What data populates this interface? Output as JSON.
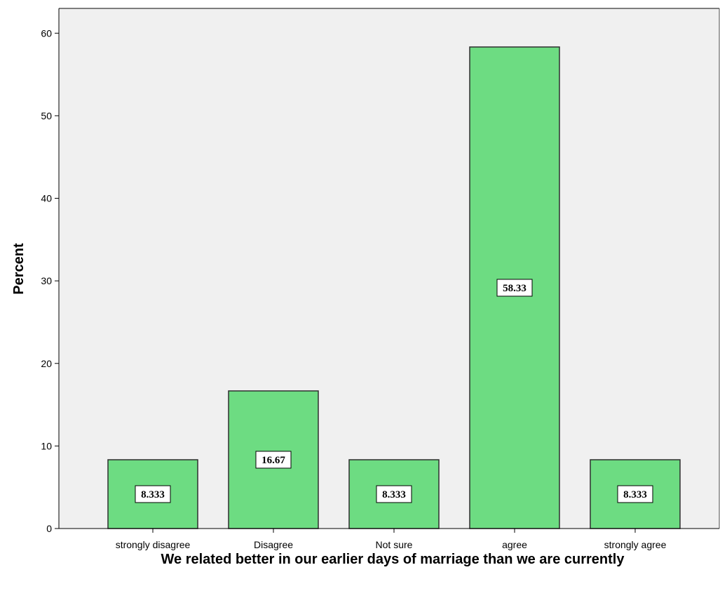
{
  "chart_data": {
    "type": "bar",
    "categories": [
      "strongly disagree",
      "Disagree",
      "Not sure",
      "agree",
      "strongly agree"
    ],
    "values": [
      8.333,
      16.67,
      8.333,
      58.33,
      8.333
    ],
    "data_labels": [
      "8.333",
      "16.67",
      "8.333",
      "58.33",
      "8.333"
    ],
    "xlabel": "We related better in our earlier days of marriage than we are currently",
    "ylabel": "Percent",
    "ylim": [
      0,
      63
    ],
    "yticks": [
      0,
      10,
      20,
      30,
      40,
      50,
      60
    ],
    "grid": false,
    "legend": "none",
    "colors": {
      "plot_background": "#f0f0f0",
      "bar_fill": "#6ddc82",
      "bar_stroke": "#2f2f2f",
      "axis": "#000000"
    }
  }
}
